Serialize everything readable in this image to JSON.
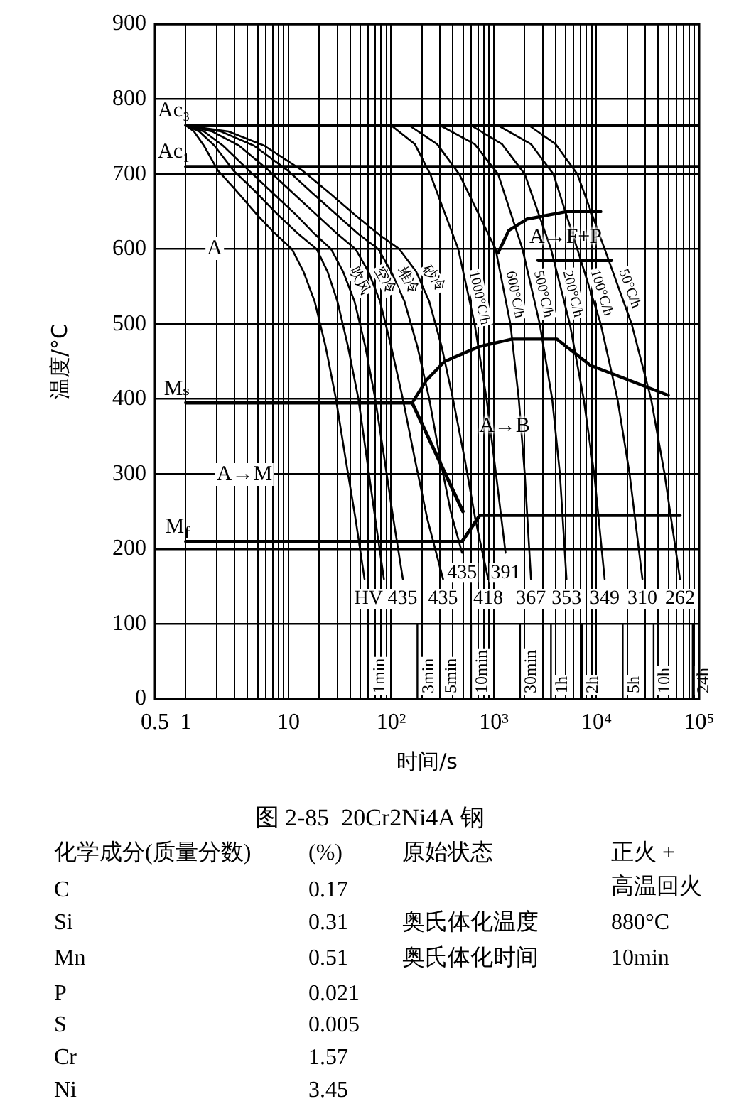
{
  "chart_data": {
    "type": "line",
    "title": "图 2-85  20Cr2Ni4A 钢",
    "xlabel": "时间/s",
    "ylabel": "温度/°C",
    "log": "x",
    "grid": true,
    "legend": false,
    "marker": "none",
    "line_style": "solid",
    "xlim": [
      0.5,
      100000
    ],
    "xticks": [
      {
        "value": 0.5,
        "label": "0.5"
      },
      1,
      {
        "value": 2,
        "label": null
      },
      {
        "value": 3,
        "label": null
      },
      {
        "value": 4,
        "label": null
      },
      {
        "value": 5,
        "label": null
      },
      {
        "value": 6,
        "label": null
      },
      {
        "value": 7,
        "label": null
      },
      {
        "value": 8,
        "label": null
      },
      {
        "value": 9,
        "label": null
      },
      10,
      {
        "value": 20,
        "label": null
      },
      {
        "value": 30,
        "label": null
      },
      {
        "value": 40,
        "label": null
      },
      {
        "value": 50,
        "label": null
      },
      {
        "value": 60,
        "label": null
      },
      {
        "value": 70,
        "label": null
      },
      {
        "value": 80,
        "label": null
      },
      {
        "value": 90,
        "label": null
      },
      {
        "value": 100,
        "label": "10²"
      },
      {
        "value": 200,
        "label": null
      },
      {
        "value": 300,
        "label": null
      },
      {
        "value": 400,
        "label": null
      },
      {
        "value": 500,
        "label": null
      },
      {
        "value": 600,
        "label": null
      },
      {
        "value": 700,
        "label": null
      },
      {
        "value": 800,
        "label": null
      },
      {
        "value": 900,
        "label": null
      },
      {
        "value": 1000,
        "label": "10³"
      },
      {
        "value": 2000,
        "label": null
      },
      {
        "value": 3000,
        "label": null
      },
      {
        "value": 4000,
        "label": null
      },
      {
        "value": 5000,
        "label": null
      },
      {
        "value": 6000,
        "label": null
      },
      {
        "value": 7000,
        "label": null
      },
      {
        "value": 8000,
        "label": null
      },
      {
        "value": 9000,
        "label": null
      },
      {
        "value": 10000,
        "label": "10⁴"
      },
      {
        "value": 20000,
        "label": null
      },
      {
        "value": 30000,
        "label": null
      },
      {
        "value": 40000,
        "label": null
      },
      {
        "value": 50000,
        "label": null
      },
      {
        "value": 60000,
        "label": null
      },
      {
        "value": 70000,
        "label": null
      },
      {
        "value": 80000,
        "label": null
      },
      {
        "value": 90000,
        "label": null
      },
      {
        "value": 100000,
        "label": "10⁵"
      }
    ],
    "ylim": [
      0,
      900
    ],
    "yticks": [
      0,
      100,
      200,
      300,
      400,
      500,
      600,
      700,
      800,
      900
    ],
    "series": [
      {
        "name": "Ac₃",
        "color": "#000000",
        "x": [
          1,
          100000
        ],
        "values": [
          765,
          765
        ]
      },
      {
        "name": "Ac₁",
        "color": "#000000",
        "x": [
          1,
          100000
        ],
        "values": [
          710,
          710
        ]
      },
      {
        "name": "Mₛ",
        "color": "#000000",
        "x": [
          1,
          160,
          500
        ],
        "values": [
          395,
          395,
          250
        ]
      },
      {
        "name": "M$_{f}$",
        "color": "#000000",
        "x": [
          1,
          490,
          730,
          65000
        ],
        "values": [
          210,
          210,
          245,
          245
        ]
      },
      {
        "color": "#000000",
        "x": [
          160,
          220,
          330,
          720,
          1500,
          4100,
          8700,
          50000
        ],
        "values": [
          395,
          425,
          450,
          470,
          480,
          480,
          445,
          405
        ]
      },
      {
        "color": "#000000",
        "x": [
          1100,
          1400,
          2100,
          5100,
          11000
        ],
        "values": [
          595,
          625,
          640,
          650,
          650
        ]
      },
      {
        "color": "#000000",
        "x": [
          2700,
          14000
        ],
        "values": [
          585,
          585
        ]
      },
      {
        "color": "#000000",
        "x": [
          1,
          1.2,
          1.5,
          2.05,
          3,
          5,
          7.5,
          10.8,
          14,
          18,
          23,
          29,
          36,
          45,
          55
        ],
        "values": [
          765,
          757,
          738,
          705,
          680,
          645,
          620,
          600,
          570,
          530,
          470,
          400,
          320,
          240,
          160
        ]
      },
      {
        "color": "#000000",
        "x": [
          1,
          1.35,
          1.9,
          2.9,
          4.5,
          8,
          12.5,
          18.8,
          24,
          30,
          38,
          48,
          58,
          70,
          85
        ],
        "values": [
          765,
          757,
          738,
          705,
          680,
          645,
          620,
          600,
          570,
          530,
          470,
          400,
          320,
          240,
          160
        ]
      },
      {
        "name": "吹风",
        "color": "#000000",
        "x": [
          1,
          1.5,
          2.3,
          4.1,
          7,
          12,
          18,
          26,
          34,
          44,
          56,
          70,
          86,
          105,
          130
        ],
        "values": [
          765,
          757,
          738,
          705,
          675,
          645,
          620,
          600,
          570,
          530,
          470,
          400,
          320,
          240,
          160
        ]
      },
      {
        "name": "空冷",
        "color": "#000000",
        "x": [
          1,
          1.8,
          3.3,
          6.4,
          11,
          19,
          30,
          45,
          60,
          78,
          100,
          130,
          170,
          225,
          320
        ],
        "values": [
          765,
          757,
          738,
          705,
          675,
          645,
          620,
          600,
          570,
          530,
          470,
          400,
          320,
          240,
          160
        ]
      },
      {
        "name": "堆冷",
        "color": "#000000",
        "x": [
          1,
          2.2,
          4.6,
          9.8,
          17,
          30,
          48,
          75,
          100,
          135,
          180,
          235,
          300,
          380,
          490
        ],
        "values": [
          765,
          757,
          738,
          705,
          675,
          645,
          620,
          600,
          570,
          530,
          470,
          400,
          320,
          250,
          195
        ]
      },
      {
        "name": "砂冷",
        "color": "#000000",
        "x": [
          1,
          2.6,
          5.8,
          13.6,
          25,
          45,
          75,
          120,
          175,
          235,
          310,
          400,
          520,
          660,
          880
        ],
        "values": [
          765,
          757,
          738,
          705,
          675,
          645,
          620,
          600,
          570,
          530,
          470,
          400,
          320,
          240,
          160
        ]
      },
      {
        "name": "1000°C/h",
        "color": "#000000",
        "x": [
          100,
          170,
          240,
          450,
          650,
          850,
          1050,
          1300
        ],
        "values": [
          765,
          740,
          700,
          600,
          500,
          400,
          300,
          195
        ]
      },
      {
        "name": "600°C/h",
        "color": "#000000",
        "x": [
          150,
          280,
          460,
          1040,
          1450,
          1750,
          2000,
          2300
        ],
        "values": [
          765,
          740,
          700,
          600,
          500,
          400,
          300,
          160
        ]
      },
      {
        "name": "500°C/h",
        "color": "#000000",
        "x": [
          300,
          650,
          1100,
          1900,
          2800,
          3700,
          4400,
          5100
        ],
        "values": [
          765,
          740,
          700,
          600,
          500,
          400,
          300,
          160
        ]
      },
      {
        "name": "200°C/h",
        "color": "#000000",
        "x": [
          600,
          1200,
          2000,
          3600,
          5500,
          7500,
          9500,
          12000
        ],
        "values": [
          765,
          740,
          700,
          600,
          500,
          400,
          300,
          160
        ]
      },
      {
        "name": "100°C/h",
        "color": "#000000",
        "x": [
          1100,
          2300,
          3800,
          6500,
          11000,
          16000,
          21000,
          28000
        ],
        "values": [
          765,
          740,
          700,
          600,
          500,
          400,
          300,
          160
        ]
      },
      {
        "name": "50°C/h",
        "color": "#000000",
        "x": [
          2200,
          4000,
          6500,
          12000,
          22000,
          34000,
          46000,
          65000
        ],
        "values": [
          765,
          740,
          700,
          600,
          500,
          400,
          300,
          160
        ]
      }
    ],
    "ref_lines": [
      {
        "axis": "x",
        "value": 60,
        "label": "1min"
      },
      {
        "axis": "x",
        "value": 180,
        "label": "3min"
      },
      {
        "axis": "x",
        "value": 300,
        "label": "5min"
      },
      {
        "axis": "x",
        "value": 600,
        "label": "10min"
      },
      {
        "axis": "x",
        "value": 1800,
        "label": "30min"
      },
      {
        "axis": "x",
        "value": 3600,
        "label": "1h"
      },
      {
        "axis": "x",
        "value": 7200,
        "label": "2h"
      },
      {
        "axis": "x",
        "value": 18000,
        "label": "5h"
      },
      {
        "axis": "x",
        "value": 36000,
        "label": "10h"
      },
      {
        "axis": "x",
        "value": 86400,
        "label": "24h"
      }
    ],
    "annotations": [
      {
        "text": "HV 435",
        "x": 130,
        "y": 160
      },
      {
        "text": "435",
        "x": 320,
        "y": 160
      },
      {
        "text": "435",
        "x": 490,
        "y": 195
      },
      {
        "text": "418",
        "x": 880,
        "y": 160
      },
      {
        "text": "391",
        "x": 1300,
        "y": 195
      },
      {
        "text": "367",
        "x": 2300,
        "y": 160
      },
      {
        "text": "353",
        "x": 5100,
        "y": 160
      },
      {
        "text": "349",
        "x": 12000,
        "y": 160
      },
      {
        "text": "310",
        "x": 28000,
        "y": 160
      },
      {
        "text": "262",
        "x": 65000,
        "y": 160
      },
      "A",
      "A→M",
      "A→B",
      "A→F+P",
      "化学成分(质量分数)",
      "(%)",
      "原始状态",
      "正火 + 高温回火",
      "C",
      "0.17",
      "Si",
      "0.31",
      "奥氏体化温度",
      "880°C",
      "Mn",
      "0.51",
      "奥氏体化时间",
      "10min",
      "P",
      "0.021",
      "S",
      "0.005",
      "Cr",
      "1.57",
      "Ni",
      "3.45"
    ]
  }
}
